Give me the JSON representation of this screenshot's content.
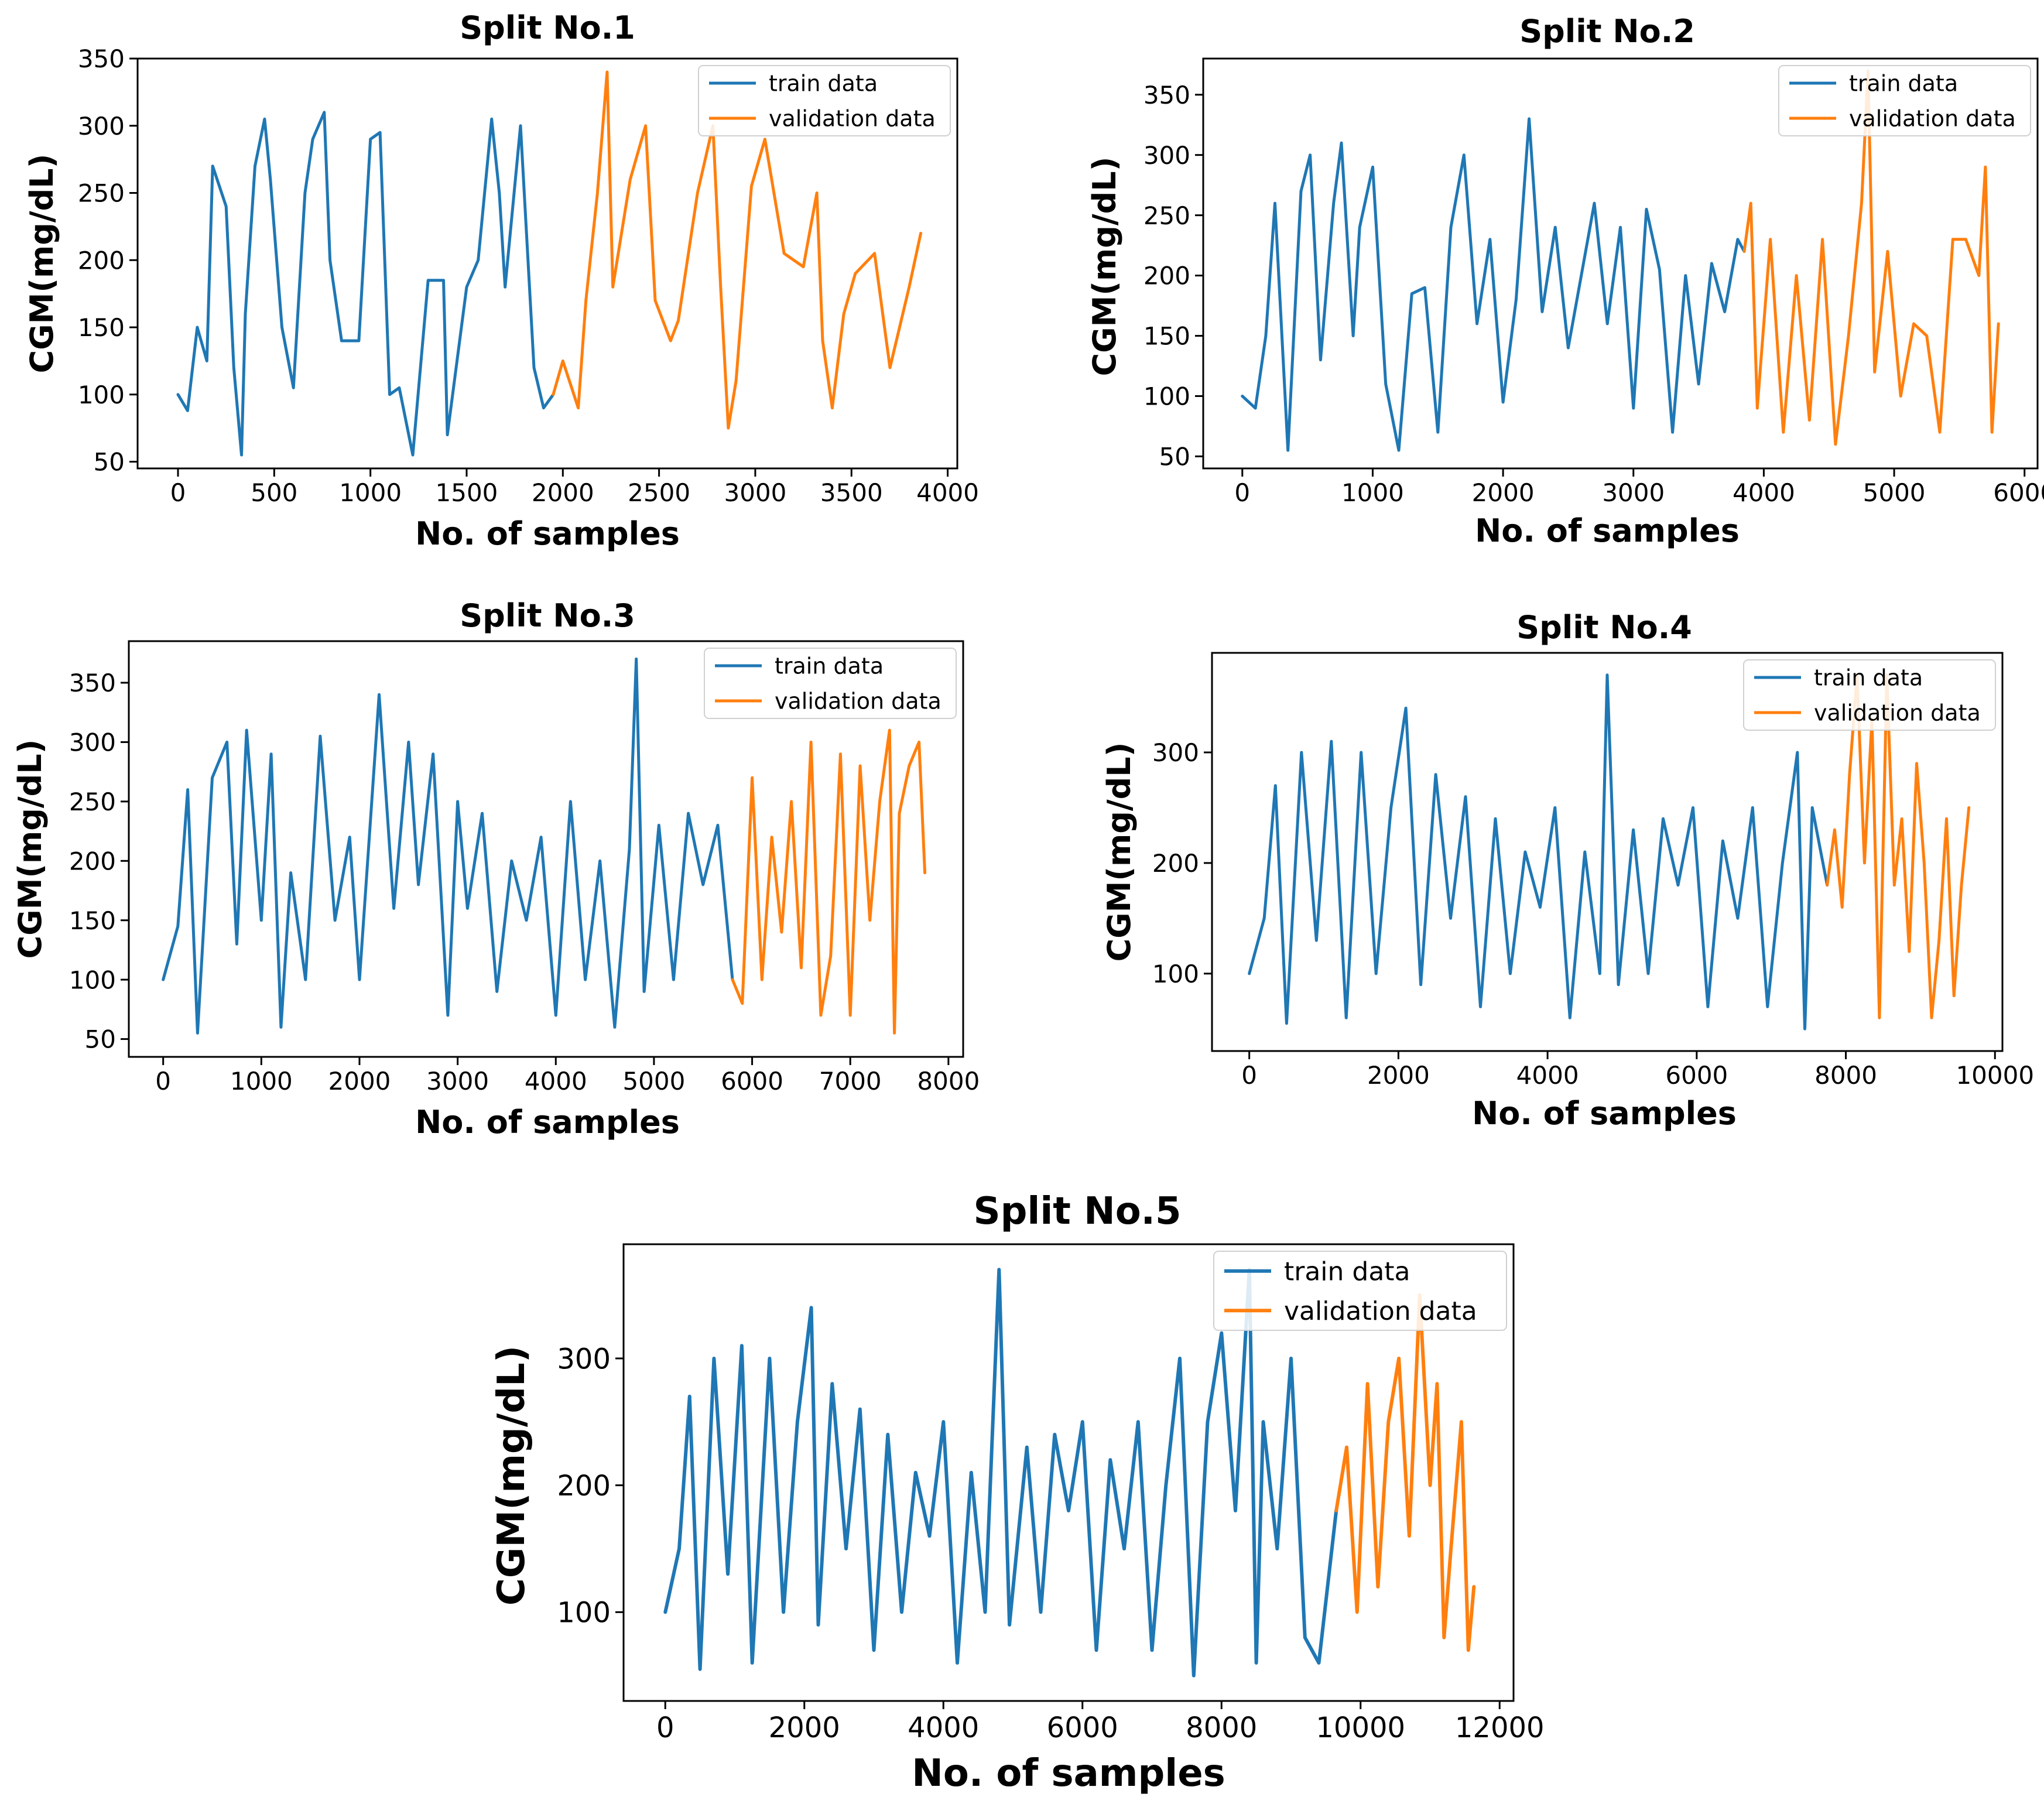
{
  "colors": {
    "train": "#1f77b4",
    "validation": "#ff7f0e",
    "axis": "#000000"
  },
  "chart_data": [
    {
      "type": "line",
      "title": "Split No.1",
      "xlabel": "No. of samples",
      "ylabel": "CGM(mg/dL)",
      "xlim": [
        -210,
        4050
      ],
      "ylim": [
        45,
        350
      ],
      "xticks": [
        0,
        500,
        1000,
        1500,
        2000,
        2500,
        3000,
        3500,
        4000
      ],
      "yticks": [
        50,
        100,
        150,
        200,
        250,
        300,
        350
      ],
      "legend": [
        "train data",
        "validation data"
      ],
      "legend_position": "top-right",
      "split_index": 1950,
      "series": [
        {
          "name": "train data",
          "x": [
            0,
            50,
            100,
            150,
            180,
            250,
            290,
            330,
            350,
            400,
            450,
            480,
            540,
            600,
            660,
            700,
            760,
            790,
            850,
            940,
            1000,
            1050,
            1100,
            1150,
            1220,
            1300,
            1380,
            1400,
            1500,
            1560,
            1630,
            1670,
            1700,
            1780,
            1850,
            1900,
            1950
          ],
          "values": [
            100,
            88,
            150,
            125,
            270,
            240,
            120,
            55,
            160,
            270,
            305,
            260,
            150,
            105,
            250,
            290,
            310,
            200,
            140,
            140,
            290,
            295,
            100,
            105,
            55,
            185,
            185,
            70,
            180,
            200,
            305,
            250,
            180,
            300,
            120,
            90,
            100
          ]
        },
        {
          "name": "validation data",
          "x": [
            1950,
            2000,
            2080,
            2120,
            2180,
            2230,
            2260,
            2350,
            2430,
            2480,
            2560,
            2600,
            2700,
            2780,
            2820,
            2860,
            2900,
            2980,
            3050,
            3150,
            3250,
            3320,
            3350,
            3400,
            3460,
            3520,
            3620,
            3700,
            3800,
            3860
          ],
          "values": [
            100,
            125,
            90,
            170,
            250,
            340,
            180,
            260,
            300,
            170,
            140,
            155,
            250,
            300,
            180,
            75,
            110,
            255,
            290,
            205,
            195,
            250,
            140,
            90,
            160,
            190,
            205,
            120,
            180,
            220
          ]
        }
      ]
    },
    {
      "type": "line",
      "title": "Split No.2",
      "xlabel": "No. of samples",
      "ylabel": "CGM(mg/dL)",
      "xlim": [
        -300,
        6100
      ],
      "ylim": [
        40,
        380
      ],
      "xticks": [
        0,
        1000,
        2000,
        3000,
        4000,
        5000,
        6000
      ],
      "yticks": [
        50,
        100,
        150,
        200,
        250,
        300,
        350
      ],
      "legend": [
        "train data",
        "validation data"
      ],
      "legend_position": "top-right",
      "split_index": 3850,
      "series": [
        {
          "name": "train data",
          "x": [
            0,
            100,
            180,
            250,
            350,
            450,
            520,
            600,
            700,
            760,
            850,
            900,
            1000,
            1100,
            1200,
            1300,
            1400,
            1500,
            1600,
            1700,
            1800,
            1900,
            2000,
            2100,
            2200,
            2300,
            2400,
            2500,
            2600,
            2700,
            2800,
            2900,
            3000,
            3100,
            3200,
            3300,
            3400,
            3500,
            3600,
            3700,
            3800,
            3850
          ],
          "values": [
            100,
            90,
            150,
            260,
            55,
            270,
            300,
            130,
            260,
            310,
            150,
            240,
            290,
            110,
            55,
            185,
            190,
            70,
            240,
            300,
            160,
            230,
            95,
            180,
            330,
            170,
            240,
            140,
            200,
            260,
            160,
            240,
            90,
            255,
            205,
            70,
            200,
            110,
            210,
            170,
            230,
            220
          ]
        },
        {
          "name": "validation data",
          "x": [
            3850,
            3900,
            3950,
            4050,
            4150,
            4250,
            4350,
            4450,
            4550,
            4650,
            4750,
            4800,
            4850,
            4950,
            5050,
            5150,
            5250,
            5350,
            5450,
            5550,
            5650,
            5700,
            5750,
            5800
          ],
          "values": [
            220,
            260,
            90,
            230,
            70,
            200,
            80,
            230,
            60,
            150,
            260,
            370,
            120,
            220,
            100,
            160,
            150,
            70,
            230,
            230,
            200,
            290,
            70,
            160
          ]
        }
      ]
    },
    {
      "type": "line",
      "title": "Split No.3",
      "xlabel": "No. of samples",
      "ylabel": "CGM(mg/dL)",
      "xlim": [
        -350,
        8150
      ],
      "ylim": [
        35,
        385
      ],
      "xticks": [
        0,
        1000,
        2000,
        3000,
        4000,
        5000,
        6000,
        7000,
        8000
      ],
      "yticks": [
        50,
        100,
        150,
        200,
        250,
        300,
        350
      ],
      "legend": [
        "train data",
        "validation data"
      ],
      "legend_position": "top-right",
      "split_index": 5800,
      "series": [
        {
          "name": "train data",
          "x": [
            0,
            150,
            250,
            350,
            500,
            650,
            750,
            850,
            1000,
            1100,
            1200,
            1300,
            1450,
            1600,
            1750,
            1900,
            2000,
            2200,
            2350,
            2500,
            2600,
            2750,
            2900,
            3000,
            3100,
            3250,
            3400,
            3550,
            3700,
            3850,
            4000,
            4150,
            4300,
            4450,
            4600,
            4750,
            4820,
            4900,
            5050,
            5200,
            5350,
            5500,
            5650,
            5800
          ],
          "values": [
            100,
            145,
            260,
            55,
            270,
            300,
            130,
            310,
            150,
            290,
            60,
            190,
            100,
            305,
            150,
            220,
            100,
            340,
            160,
            300,
            180,
            290,
            70,
            250,
            160,
            240,
            90,
            200,
            150,
            220,
            70,
            250,
            100,
            200,
            60,
            210,
            370,
            90,
            230,
            100,
            240,
            180,
            230,
            100
          ]
        },
        {
          "name": "validation data",
          "x": [
            5800,
            5900,
            6000,
            6100,
            6200,
            6300,
            6400,
            6500,
            6600,
            6700,
            6800,
            6900,
            7000,
            7100,
            7200,
            7300,
            7400,
            7450,
            7500,
            7600,
            7700,
            7760
          ],
          "values": [
            100,
            80,
            270,
            100,
            220,
            140,
            250,
            110,
            300,
            70,
            120,
            290,
            70,
            280,
            150,
            250,
            310,
            55,
            240,
            280,
            300,
            190
          ]
        }
      ]
    },
    {
      "type": "line",
      "title": "Split No.4",
      "xlabel": "No. of samples",
      "ylabel": "CGM(mg/dL)",
      "xlim": [
        -500,
        10100
      ],
      "ylim": [
        30,
        390
      ],
      "xticks": [
        0,
        2000,
        4000,
        6000,
        8000,
        10000
      ],
      "yticks": [
        100,
        200,
        300
      ],
      "legend": [
        "train data",
        "validation data"
      ],
      "legend_position": "top-right",
      "split_index": 7750,
      "series": [
        {
          "name": "train data",
          "x": [
            0,
            200,
            350,
            500,
            700,
            900,
            1100,
            1300,
            1500,
            1700,
            1900,
            2100,
            2300,
            2500,
            2700,
            2900,
            3100,
            3300,
            3500,
            3700,
            3900,
            4100,
            4300,
            4500,
            4700,
            4800,
            4950,
            5150,
            5350,
            5550,
            5750,
            5950,
            6150,
            6350,
            6550,
            6750,
            6950,
            7150,
            7350,
            7450,
            7550,
            7750
          ],
          "values": [
            100,
            150,
            270,
            55,
            300,
            130,
            310,
            60,
            300,
            100,
            250,
            340,
            90,
            280,
            150,
            260,
            70,
            240,
            100,
            210,
            160,
            250,
            60,
            210,
            100,
            370,
            90,
            230,
            100,
            240,
            180,
            250,
            70,
            220,
            150,
            250,
            70,
            200,
            300,
            50,
            250,
            180
          ]
        },
        {
          "name": "validation data",
          "x": [
            7750,
            7850,
            7950,
            8050,
            8150,
            8250,
            8350,
            8450,
            8550,
            8650,
            8750,
            8850,
            8950,
            9050,
            9150,
            9250,
            9350,
            9450,
            9550,
            9650
          ],
          "values": [
            180,
            230,
            160,
            280,
            370,
            200,
            330,
            60,
            370,
            180,
            240,
            120,
            290,
            200,
            60,
            130,
            240,
            80,
            180,
            250
          ]
        }
      ]
    },
    {
      "type": "line",
      "title": "Split No.5",
      "xlabel": "No. of samples",
      "ylabel": "CGM(mg/dL)",
      "xlim": [
        -600,
        12200
      ],
      "ylim": [
        30,
        390
      ],
      "xticks": [
        0,
        2000,
        4000,
        6000,
        8000,
        10000,
        12000
      ],
      "yticks": [
        100,
        200,
        300
      ],
      "legend": [
        "train data",
        "validation data"
      ],
      "legend_position": "top-right",
      "split_index": 9650,
      "series": [
        {
          "name": "train data",
          "x": [
            0,
            200,
            350,
            500,
            700,
            900,
            1100,
            1250,
            1500,
            1700,
            1900,
            2100,
            2200,
            2400,
            2600,
            2800,
            3000,
            3200,
            3400,
            3600,
            3800,
            4000,
            4200,
            4400,
            4600,
            4800,
            4950,
            5200,
            5400,
            5600,
            5800,
            6000,
            6200,
            6400,
            6600,
            6800,
            7000,
            7200,
            7400,
            7600,
            7800,
            8000,
            8200,
            8400,
            8500,
            8600,
            8800,
            9000,
            9200,
            9400,
            9650
          ],
          "values": [
            100,
            150,
            270,
            55,
            300,
            130,
            310,
            60,
            300,
            100,
            250,
            340,
            90,
            280,
            150,
            260,
            70,
            240,
            100,
            210,
            160,
            250,
            60,
            210,
            100,
            370,
            90,
            230,
            100,
            240,
            180,
            250,
            70,
            220,
            150,
            250,
            70,
            200,
            300,
            50,
            250,
            320,
            180,
            370,
            60,
            250,
            150,
            300,
            80,
            60,
            180
          ]
        },
        {
          "name": "validation data",
          "x": [
            9650,
            9800,
            9950,
            10100,
            10250,
            10400,
            10550,
            10700,
            10850,
            11000,
            11100,
            11200,
            11300,
            11450,
            11550,
            11630
          ],
          "values": [
            180,
            230,
            100,
            280,
            120,
            250,
            300,
            160,
            350,
            200,
            280,
            80,
            150,
            250,
            70,
            120
          ]
        }
      ]
    }
  ]
}
